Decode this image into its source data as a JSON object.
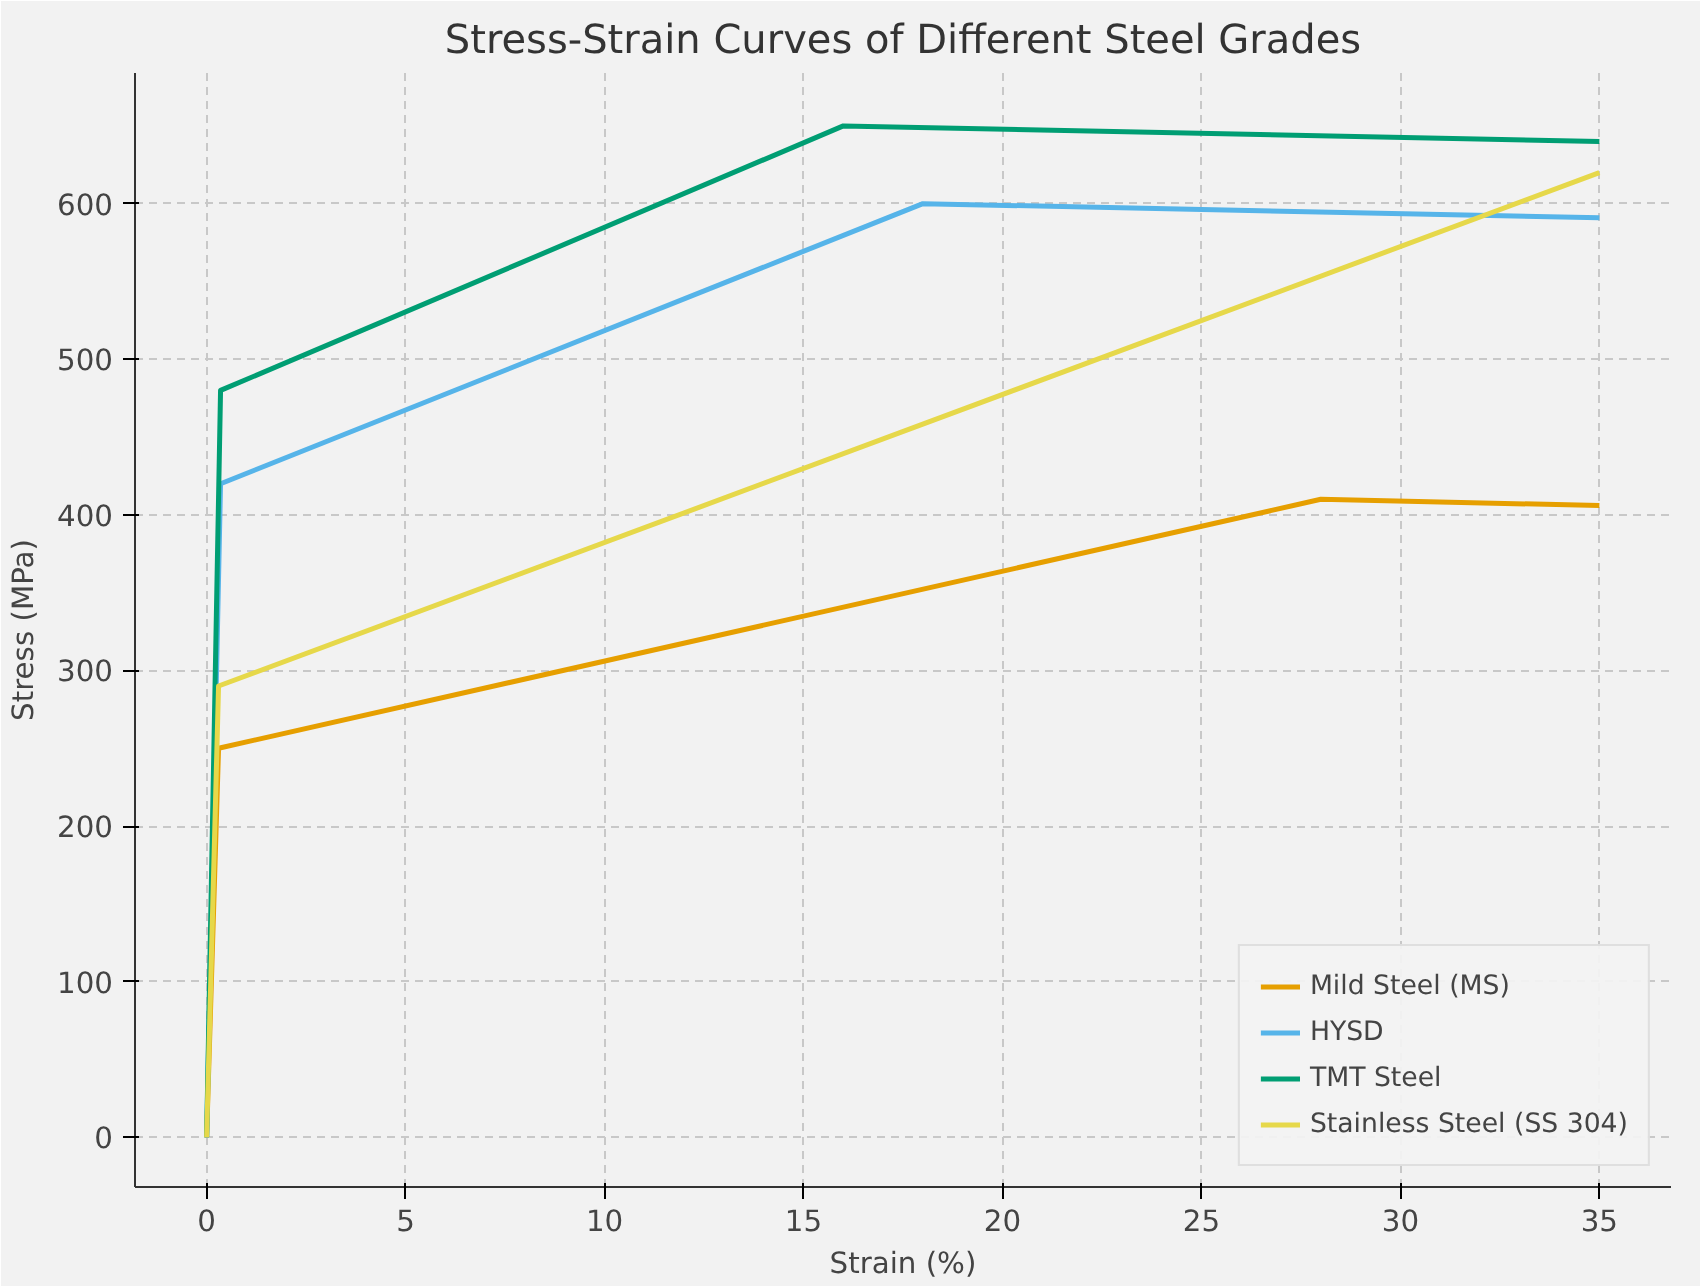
{
  "chart_data": {
    "type": "line",
    "title": "Stress-Strain Curves of Different Steel Grades",
    "xlabel": "Strain (%)",
    "ylabel": "Stress (MPa)",
    "xlim": [
      -1.8,
      36.8
    ],
    "ylim": [
      -32,
      684
    ],
    "xticks": [
      0,
      5,
      10,
      15,
      20,
      25,
      30,
      35
    ],
    "yticks": [
      0,
      100,
      200,
      300,
      400,
      500,
      600
    ],
    "grid": true,
    "legend": "bottom right",
    "line_style": "solid",
    "series": [
      {
        "name": "Mild Steel (MS)",
        "color": "#e69f00",
        "x": [
          0,
          0.3,
          28,
          35
        ],
        "values": [
          0,
          250,
          410,
          406
        ]
      },
      {
        "name": "HYSD",
        "color": "#56b4e9",
        "x": [
          0,
          0.35,
          18,
          35
        ],
        "values": [
          0,
          420,
          600,
          591
        ]
      },
      {
        "name": "TMT Steel",
        "color": "#009e73",
        "x": [
          0,
          0.35,
          16,
          35
        ],
        "values": [
          0,
          480,
          650,
          640
        ]
      },
      {
        "name": "Stainless Steel (SS 304)",
        "color": "#e6d84a",
        "x": [
          0,
          0.3,
          35
        ],
        "values": [
          0,
          290,
          620
        ]
      }
    ]
  }
}
